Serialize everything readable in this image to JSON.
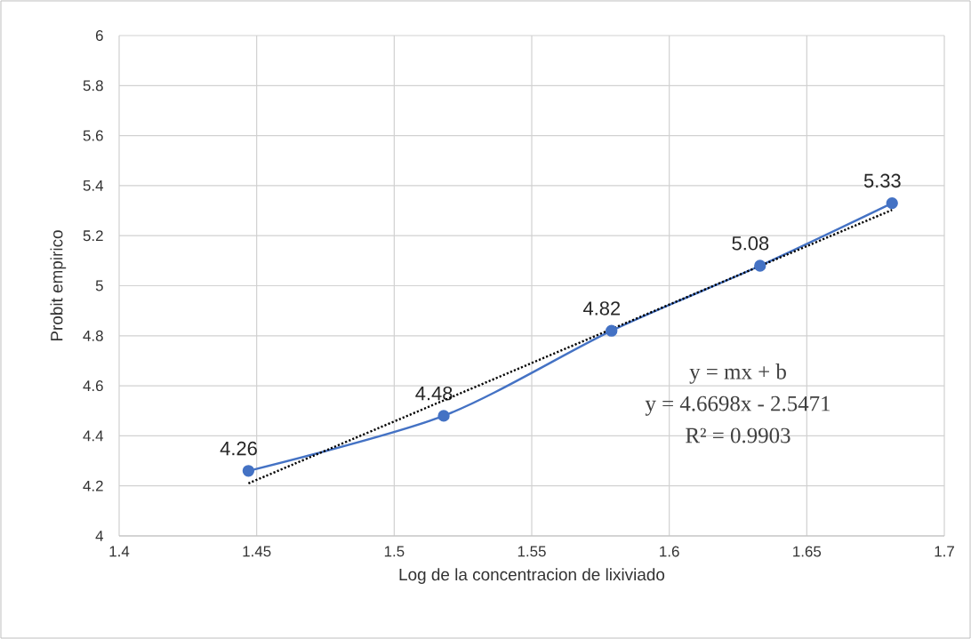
{
  "chart_data": {
    "type": "line",
    "xlabel": "Log de la concentracion de lixiviado",
    "ylabel": "Probit empirico",
    "series": [
      {
        "color": "#4472c4",
        "x": [
          1.447,
          1.518,
          1.579,
          1.633,
          1.681
        ],
        "values": [
          4.26,
          4.48,
          4.82,
          5.08,
          5.33
        ],
        "marker": "circle",
        "value_labels": [
          "4.26",
          "4.48",
          "4.82",
          "5.08",
          "5.33"
        ]
      },
      {
        "color": "#000000",
        "x": [
          1.447,
          1.681
        ],
        "values": [
          4.21,
          5.303
        ],
        "line_style": "dotted",
        "marker": "none"
      }
    ],
    "xlim": [
      1.4,
      1.7
    ],
    "xticks": [
      1.4,
      1.45,
      1.5,
      1.55,
      1.6,
      1.65,
      1.7
    ],
    "ylim": [
      4,
      6
    ],
    "yticks": [
      4,
      4.2,
      4.4,
      4.6,
      4.8,
      5,
      5.2,
      5.4,
      5.6,
      5.8,
      6
    ],
    "grid": true,
    "annotations": [
      "y = mx + b",
      "y = 4.6698x - 2.5471",
      "R² = 0.9903"
    ]
  }
}
